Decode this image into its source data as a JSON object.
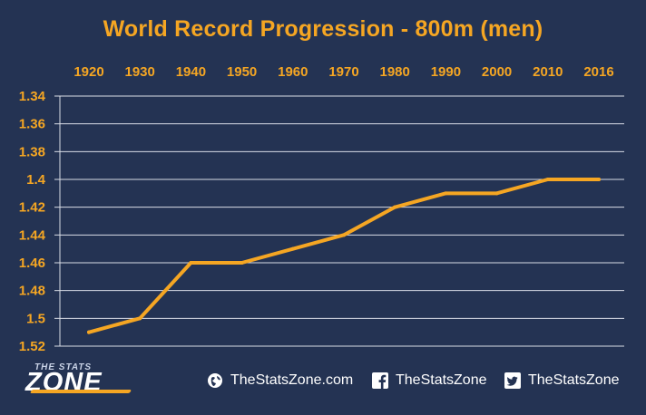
{
  "chart_data": {
    "type": "line",
    "title": "World Record Progression - 800m (men)",
    "xlabel": "",
    "ylabel": "",
    "categories": [
      "1920",
      "1930",
      "1940",
      "1950",
      "1960",
      "1970",
      "1980",
      "1990",
      "2000",
      "2010",
      "2016"
    ],
    "series": [
      {
        "values": [
          1.51,
          1.5,
          1.46,
          1.46,
          1.45,
          1.44,
          1.42,
          1.41,
          1.41,
          1.4,
          1.4
        ]
      }
    ],
    "y_ticks": [
      "1.34",
      "1.36",
      "1.38",
      "1.4",
      "1.42",
      "1.44",
      "1.46",
      "1.48",
      "1.5",
      "1.52"
    ],
    "ylim": [
      1.34,
      1.52
    ],
    "y_inverted": true,
    "x_axis_position": "top",
    "grid": true,
    "legend": "none",
    "colors": {
      "background": "#243353",
      "line": "#f5a623",
      "text": "#f5a623",
      "grid": "#d9dde6"
    }
  },
  "footer": {
    "brand_top": "THE STATS",
    "brand_main": "ZONE",
    "website": "TheStatsZone.com",
    "facebook": "TheStatsZone",
    "twitter": "TheStatsZone",
    "icons": [
      "globe-icon",
      "facebook-icon",
      "twitter-icon"
    ]
  }
}
